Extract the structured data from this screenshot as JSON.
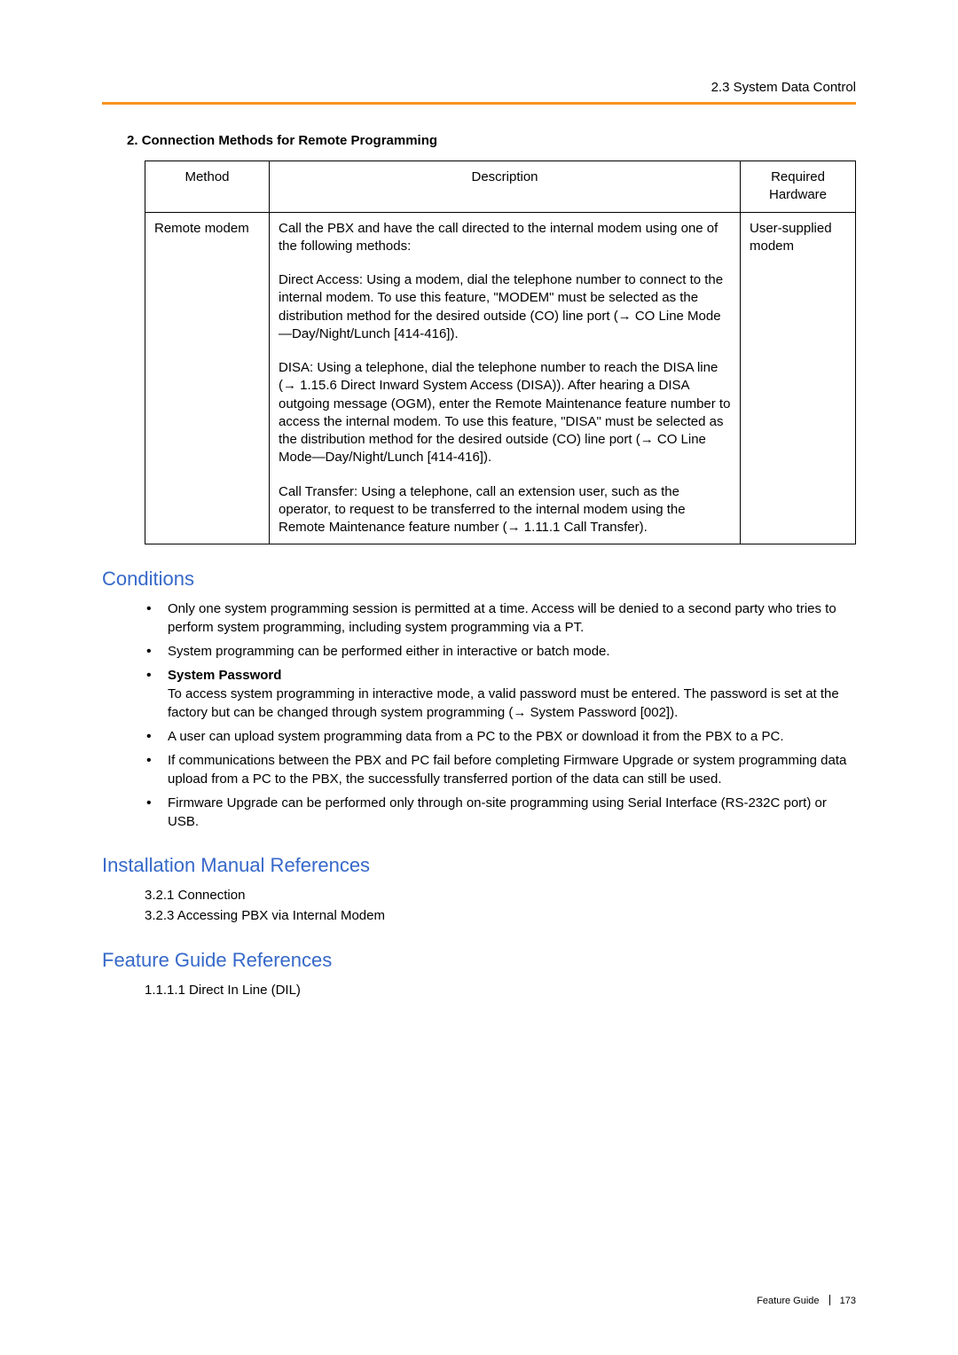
{
  "header": {
    "section_label": "2.3 System Data Control"
  },
  "list_item": {
    "number": "2.",
    "title": "Connection Methods for Remote Programming"
  },
  "table": {
    "headers": {
      "method": "Method",
      "description": "Description",
      "hardware": "Required Hardware"
    },
    "row": {
      "method": "Remote modem",
      "hardware": "User-supplied modem",
      "intro": "Call the PBX and have the call directed to the internal modem using one of the following methods:",
      "direct": "Direct Access: Using a modem, dial the telephone number to connect to the internal modem. To use this feature, \"MODEM\" must be selected as the distribution method for the desired outside (CO) line port (→ CO Line Mode—Day/Night/Lunch [414-416]).",
      "disa": "DISA: Using a telephone, dial the telephone number to reach the DISA line (→ 1.15.6 Direct Inward System Access (DISA)). After hearing a DISA outgoing message (OGM), enter the Remote Maintenance feature number to access the internal modem. To use this feature, \"DISA\" must be selected as the distribution method for the desired outside (CO) line port (→ CO Line Mode—Day/Night/Lunch [414-416]).",
      "transfer": "Call Transfer: Using a telephone, call an extension user, such as the operator, to request to be transferred to the internal modem using the Remote Maintenance feature number (→ 1.11.1 Call Transfer)."
    }
  },
  "conditions": {
    "heading": "Conditions",
    "items": {
      "b1": "Only one system programming session is permitted at a time. Access will be denied to a second party who tries to perform system programming, including system programming via a PT.",
      "b2": "System programming can be performed either in interactive or batch mode.",
      "b3_title": "System Password",
      "b3_body": "To access system programming in interactive mode, a valid password must be entered. The password is set at the factory but can be changed through system programming (→ System Password [002]).",
      "b4": "A user can upload system programming data from a PC to the PBX or download it from the PBX to a PC.",
      "b5": "If communications between the PBX and PC fail before completing Firmware Upgrade or system programming data upload from a PC to the PBX, the successfully transferred portion of the data can still be used.",
      "b6": "Firmware Upgrade can be performed only through on-site programming using Serial Interface (RS-232C port) or USB."
    }
  },
  "install_refs": {
    "heading": "Installation Manual References",
    "r1": "3.2.1 Connection",
    "r2": "3.2.3 Accessing PBX via Internal Modem"
  },
  "feature_refs": {
    "heading": "Feature Guide References",
    "r1": "1.1.1.1 Direct In Line (DIL)"
  },
  "footer": {
    "guide": "Feature Guide",
    "page": "173"
  },
  "colors": {
    "accent_orange": "#f7941d",
    "heading_blue": "#3669c9",
    "text": "#000000",
    "background": "#ffffff"
  }
}
